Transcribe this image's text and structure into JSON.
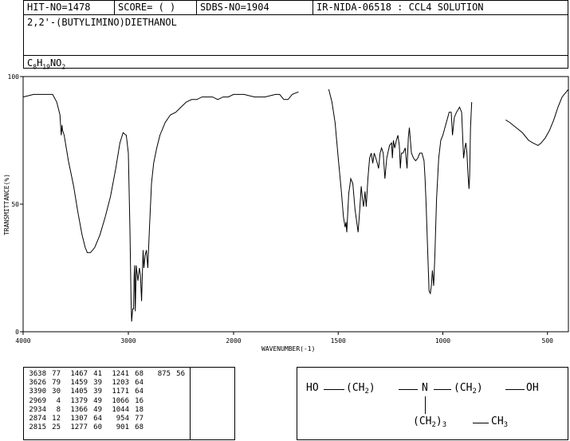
{
  "header": {
    "hit_no": "HIT-NO=1478",
    "score": "SCORE=  (   )",
    "sdbs_no": "SDBS-NO=1904",
    "ir_id": "IR-NIDA-06518 : CCL4 SOLUTION",
    "compound_name": "2,2'-(BUTYLIMINO)DIETHANOL",
    "formula_parts": [
      "C",
      "8",
      "H",
      "19",
      "NO",
      "2"
    ]
  },
  "chart_data": {
    "type": "line",
    "title": "",
    "xlabel": "WAVENUMBER(-1)",
    "ylabel": "TRANSMITTANCE(%)",
    "xlim": [
      4000,
      400
    ],
    "ylim": [
      0,
      100
    ],
    "x_ticks": [
      4000,
      3000,
      2000,
      1500,
      1000,
      500
    ],
    "y_ticks": [
      0,
      50,
      100
    ],
    "grid": false,
    "series": [
      {
        "segment": 1,
        "points": [
          [
            4000,
            92
          ],
          [
            3900,
            93
          ],
          [
            3800,
            93
          ],
          [
            3720,
            93
          ],
          [
            3680,
            90
          ],
          [
            3650,
            85
          ],
          [
            3638,
            77
          ],
          [
            3630,
            81
          ],
          [
            3626,
            79
          ],
          [
            3610,
            77
          ],
          [
            3570,
            67
          ],
          [
            3520,
            57
          ],
          [
            3480,
            47
          ],
          [
            3440,
            38
          ],
          [
            3410,
            33
          ],
          [
            3390,
            31
          ],
          [
            3360,
            31
          ],
          [
            3320,
            33
          ],
          [
            3270,
            38
          ],
          [
            3220,
            45
          ],
          [
            3170,
            53
          ],
          [
            3120,
            64
          ],
          [
            3080,
            74
          ],
          [
            3050,
            78
          ],
          [
            3020,
            77
          ],
          [
            3000,
            70
          ],
          [
            2985,
            40
          ],
          [
            2975,
            14
          ],
          [
            2969,
            4
          ],
          [
            2963,
            7
          ],
          [
            2958,
            9
          ],
          [
            2950,
            9
          ],
          [
            2945,
            22
          ],
          [
            2940,
            26
          ],
          [
            2934,
            8
          ],
          [
            2925,
            26
          ],
          [
            2910,
            20
          ],
          [
            2895,
            25
          ],
          [
            2885,
            22
          ],
          [
            2874,
            12
          ],
          [
            2868,
            21
          ],
          [
            2860,
            32
          ],
          [
            2852,
            25
          ],
          [
            2840,
            30
          ],
          [
            2828,
            32
          ],
          [
            2815,
            25
          ],
          [
            2800,
            40
          ],
          [
            2780,
            58
          ],
          [
            2760,
            66
          ],
          [
            2730,
            72
          ],
          [
            2700,
            77
          ],
          [
            2650,
            82
          ],
          [
            2600,
            85
          ],
          [
            2550,
            86
          ],
          [
            2500,
            88
          ],
          [
            2450,
            90
          ],
          [
            2400,
            91
          ],
          [
            2350,
            91
          ],
          [
            2300,
            92
          ],
          [
            2250,
            92
          ],
          [
            2200,
            92
          ],
          [
            2150,
            91
          ],
          [
            2100,
            92
          ],
          [
            2050,
            92
          ],
          [
            2000,
            93
          ],
          [
            1950,
            93
          ],
          [
            1900,
            92
          ],
          [
            1850,
            92
          ],
          [
            1800,
            93
          ],
          [
            1780,
            93
          ],
          [
            1760,
            91
          ],
          [
            1740,
            91
          ],
          [
            1720,
            93
          ],
          [
            1690,
            94
          ]
        ]
      },
      {
        "segment": 2,
        "points": [
          [
            1545,
            95
          ],
          [
            1530,
            90
          ],
          [
            1515,
            82
          ],
          [
            1500,
            68
          ],
          [
            1485,
            55
          ],
          [
            1475,
            45
          ],
          [
            1467,
            41
          ],
          [
            1463,
            43
          ],
          [
            1459,
            39
          ],
          [
            1450,
            54
          ],
          [
            1440,
            60
          ],
          [
            1430,
            58
          ],
          [
            1420,
            48
          ],
          [
            1410,
            42
          ],
          [
            1405,
            39
          ],
          [
            1397,
            48
          ],
          [
            1390,
            57
          ],
          [
            1384,
            52
          ],
          [
            1379,
            49
          ],
          [
            1372,
            55
          ],
          [
            1366,
            49
          ],
          [
            1358,
            60
          ],
          [
            1350,
            68
          ],
          [
            1342,
            70
          ],
          [
            1335,
            66
          ],
          [
            1328,
            70
          ],
          [
            1320,
            68
          ],
          [
            1313,
            66
          ],
          [
            1307,
            64
          ],
          [
            1300,
            70
          ],
          [
            1293,
            72
          ],
          [
            1285,
            70
          ],
          [
            1277,
            60
          ],
          [
            1268,
            68
          ],
          [
            1255,
            73
          ],
          [
            1245,
            74
          ],
          [
            1241,
            68
          ],
          [
            1236,
            75
          ],
          [
            1230,
            72
          ],
          [
            1222,
            75
          ],
          [
            1215,
            77
          ],
          [
            1208,
            73
          ],
          [
            1203,
            64
          ],
          [
            1198,
            70
          ],
          [
            1190,
            70
          ],
          [
            1180,
            72
          ],
          [
            1171,
            64
          ],
          [
            1165,
            76
          ],
          [
            1160,
            80
          ],
          [
            1155,
            75
          ],
          [
            1150,
            70
          ],
          [
            1140,
            68
          ],
          [
            1130,
            67
          ],
          [
            1120,
            68
          ],
          [
            1110,
            70
          ],
          [
            1100,
            70
          ],
          [
            1090,
            67
          ],
          [
            1085,
            60
          ],
          [
            1080,
            50
          ],
          [
            1075,
            38
          ],
          [
            1070,
            26
          ],
          [
            1066,
            16
          ],
          [
            1060,
            15
          ],
          [
            1055,
            18
          ],
          [
            1050,
            24
          ],
          [
            1044,
            18
          ],
          [
            1038,
            30
          ],
          [
            1030,
            52
          ],
          [
            1020,
            68
          ],
          [
            1010,
            75
          ],
          [
            1000,
            77
          ],
          [
            990,
            80
          ],
          [
            980,
            83
          ],
          [
            970,
            86
          ],
          [
            960,
            86
          ],
          [
            954,
            77
          ],
          [
            945,
            84
          ],
          [
            935,
            86
          ],
          [
            920,
            88
          ],
          [
            910,
            86
          ],
          [
            901,
            68
          ],
          [
            895,
            72
          ],
          [
            890,
            74
          ],
          [
            885,
            70
          ],
          [
            880,
            62
          ],
          [
            875,
            56
          ],
          [
            872,
            61
          ],
          [
            868,
            80
          ],
          [
            862,
            90
          ]
        ]
      },
      {
        "segment": 3,
        "points": [
          [
            700,
            83
          ],
          [
            680,
            82
          ],
          [
            650,
            80
          ],
          [
            620,
            78
          ],
          [
            590,
            75
          ],
          [
            570,
            74
          ],
          [
            545,
            73
          ],
          [
            530,
            74
          ],
          [
            510,
            76
          ],
          [
            490,
            79
          ],
          [
            470,
            83
          ],
          [
            450,
            88
          ],
          [
            430,
            92
          ],
          [
            410,
            94
          ],
          [
            400,
            95
          ]
        ]
      }
    ]
  },
  "peak_table": {
    "columns": [
      [
        [
          "3638",
          "77"
        ],
        [
          "3626",
          "79"
        ],
        [
          "3390",
          "30"
        ],
        [
          "2969",
          "4"
        ],
        [
          "2934",
          "8"
        ],
        [
          "2874",
          "12"
        ],
        [
          "2815",
          "25"
        ]
      ],
      [
        [
          "1467",
          "41"
        ],
        [
          "1459",
          "39"
        ],
        [
          "1405",
          "39"
        ],
        [
          "1379",
          "49"
        ],
        [
          "1366",
          "49"
        ],
        [
          "1307",
          "64"
        ],
        [
          "1277",
          "60"
        ]
      ],
      [
        [
          "1241",
          "68"
        ],
        [
          "1203",
          "64"
        ],
        [
          "1171",
          "64"
        ],
        [
          "1066",
          "16"
        ],
        [
          "1044",
          "18"
        ],
        [
          "954",
          "77"
        ],
        [
          "901",
          "68"
        ]
      ],
      [
        [
          "875",
          "56"
        ]
      ]
    ]
  },
  "structure": {
    "ho": "HO",
    "ch2_left": "(CH",
    "sub2": "2",
    "close": ")",
    "n": "N",
    "ch2_right": "(CH",
    "oh": "OH",
    "ch2_down": "(CH",
    "sub3": "3",
    "ch3": "CH",
    "ch3_sub": "3"
  }
}
